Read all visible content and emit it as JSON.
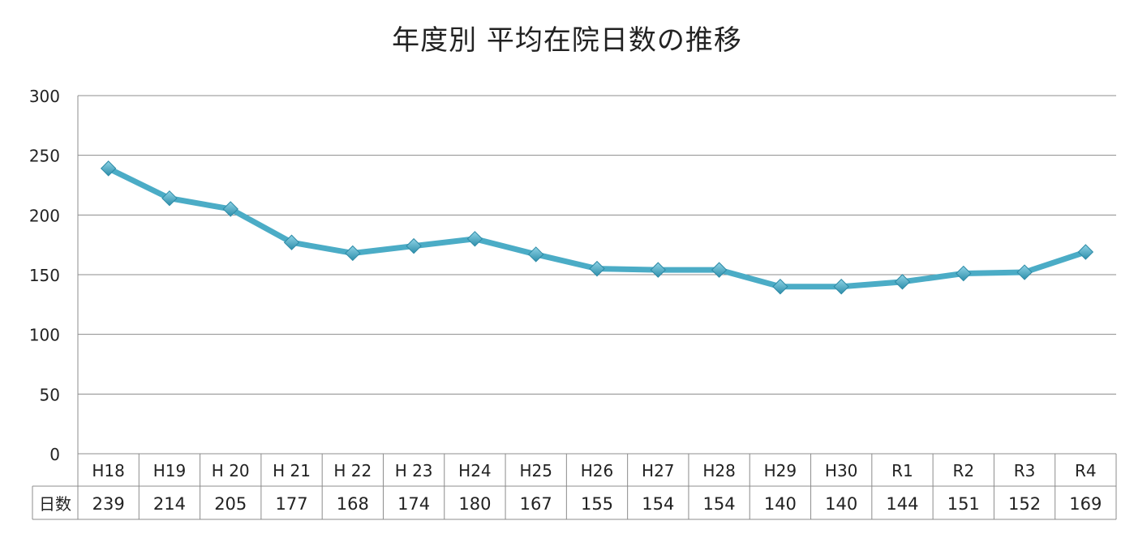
{
  "chart_data": {
    "type": "line",
    "title": "年度別 平均在院日数の推移",
    "xlabel": "",
    "ylabel": "",
    "ylim": [
      0,
      300
    ],
    "yticks": [
      0,
      50,
      100,
      150,
      200,
      250,
      300
    ],
    "grid": true,
    "categories": [
      "H18",
      "H19",
      "H 20",
      "H 21",
      "H 22",
      "H 23",
      "H24",
      "H25",
      "H26",
      "H27",
      "H28",
      "H29",
      "H30",
      "R1",
      "R2",
      "R3",
      "R4"
    ],
    "series": [
      {
        "name": "日数",
        "values": [
          239,
          214,
          205,
          177,
          168,
          174,
          180,
          167,
          155,
          154,
          154,
          140,
          140,
          144,
          151,
          152,
          169
        ],
        "color": "#4bacc6"
      }
    ],
    "data_table": true,
    "legend": "none"
  }
}
